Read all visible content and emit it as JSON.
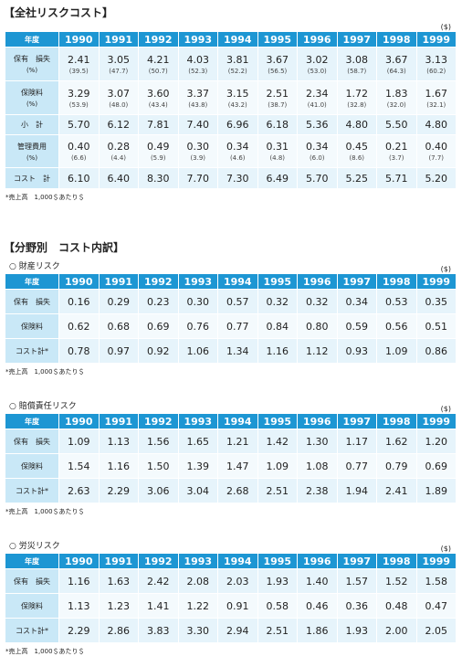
{
  "section1": {
    "title": "【全社リスクコスト】",
    "unit": "($)",
    "header": [
      "年度",
      "1990",
      "1991",
      "1992",
      "1993",
      "1994",
      "1995",
      "1996",
      "1997",
      "1998",
      "1999"
    ],
    "rows": [
      {
        "label": "保有　損失",
        "sublabel": "(%)",
        "values": [
          "2.41",
          "3.05",
          "4.21",
          "4.03",
          "3.81",
          "3.67",
          "3.02",
          "3.08",
          "3.67",
          "3.13"
        ],
        "percents": [
          "(39.5)",
          "(47.7)",
          "(50.7)",
          "(52.3)",
          "(52.2)",
          "(56.5)",
          "(53.0)",
          "(58.7)",
          "(64.3)",
          "(60.2)"
        ]
      },
      {
        "label": "保険料",
        "sublabel": "(%)",
        "values": [
          "3.29",
          "3.07",
          "3.60",
          "3.37",
          "3.15",
          "2.51",
          "2.34",
          "1.72",
          "1.83",
          "1.67"
        ],
        "percents": [
          "(53.9)",
          "(48.0)",
          "(43.4)",
          "(43.8)",
          "(43.2)",
          "(38.7)",
          "(41.0)",
          "(32.8)",
          "(32.0)",
          "(32.1)"
        ]
      },
      {
        "label": "小　計",
        "values": [
          "5.70",
          "6.12",
          "7.81",
          "7.40",
          "6.96",
          "6.18",
          "5.36",
          "4.80",
          "5.50",
          "4.80"
        ]
      },
      {
        "label": "管理費用",
        "sublabel": "(%)",
        "values": [
          "0.40",
          "0.28",
          "0.49",
          "0.30",
          "0.34",
          "0.31",
          "0.34",
          "0.45",
          "0.21",
          "0.40"
        ],
        "percents": [
          "(6.6)",
          "(4.4)",
          "(5.9)",
          "(3.9)",
          "(4.6)",
          "(4.8)",
          "(6.0)",
          "(8.6)",
          "(3.7)",
          "(7.7)"
        ]
      },
      {
        "label": "コスト　計",
        "values": [
          "6.10",
          "6.40",
          "8.30",
          "7.70",
          "7.30",
          "6.49",
          "5.70",
          "5.25",
          "5.71",
          "5.20"
        ]
      }
    ],
    "note": "*売上高　1,000＄あたり＄"
  },
  "section2": {
    "title": "【分野別　コスト内訳】",
    "groups": [
      {
        "name": "○ 財産リスク",
        "unit": "($)",
        "header": [
          "年度",
          "1990",
          "1991",
          "1992",
          "1993",
          "1994",
          "1995",
          "1996",
          "1997",
          "1998",
          "1999"
        ],
        "rows": [
          {
            "label": "保有　損失",
            "values": [
              "0.16",
              "0.29",
              "0.23",
              "0.30",
              "0.57",
              "0.32",
              "0.32",
              "0.34",
              "0.53",
              "0.35"
            ]
          },
          {
            "label": "保険料",
            "values": [
              "0.62",
              "0.68",
              "0.69",
              "0.76",
              "0.77",
              "0.84",
              "0.80",
              "0.59",
              "0.56",
              "0.51"
            ]
          },
          {
            "label": "コスト計*",
            "values": [
              "0.78",
              "0.97",
              "0.92",
              "1.06",
              "1.34",
              "1.16",
              "1.12",
              "0.93",
              "1.09",
              "0.86"
            ]
          }
        ],
        "note": "*売上高　1,000＄あたり＄"
      },
      {
        "name": "○ 賠償責任リスク",
        "unit": "($)",
        "header": [
          "年度",
          "1990",
          "1991",
          "1992",
          "1993",
          "1994",
          "1995",
          "1996",
          "1997",
          "1998",
          "1999"
        ],
        "rows": [
          {
            "label": "保有　損失",
            "values": [
              "1.09",
              "1.13",
              "1.56",
              "1.65",
              "1.21",
              "1.42",
              "1.30",
              "1.17",
              "1.62",
              "1.20"
            ]
          },
          {
            "label": "保険料",
            "values": [
              "1.54",
              "1.16",
              "1.50",
              "1.39",
              "1.47",
              "1.09",
              "1.08",
              "0.77",
              "0.79",
              "0.69"
            ]
          },
          {
            "label": "コスト計*",
            "values": [
              "2.63",
              "2.29",
              "3.06",
              "3.04",
              "2.68",
              "2.51",
              "2.38",
              "1.94",
              "2.41",
              "1.89"
            ]
          }
        ],
        "note": "*売上高　1,000＄あたり＄"
      },
      {
        "name": "○ 労災リスク",
        "unit": "($)",
        "header": [
          "年度",
          "1990",
          "1991",
          "1992",
          "1993",
          "1994",
          "1995",
          "1996",
          "1997",
          "1998",
          "1999"
        ],
        "rows": [
          {
            "label": "保有　損失",
            "values": [
              "1.16",
              "1.63",
              "2.42",
              "2.08",
              "2.03",
              "1.93",
              "1.40",
              "1.57",
              "1.52",
              "1.58"
            ]
          },
          {
            "label": "保険料",
            "values": [
              "1.13",
              "1.23",
              "1.41",
              "1.22",
              "0.91",
              "0.58",
              "0.46",
              "0.36",
              "0.48",
              "0.47"
            ]
          },
          {
            "label": "コスト計*",
            "values": [
              "2.29",
              "2.86",
              "3.83",
              "3.30",
              "2.94",
              "2.51",
              "1.86",
              "1.93",
              "2.00",
              "2.05"
            ]
          }
        ],
        "note": "*売上高　1,000＄あたり＄"
      }
    ]
  }
}
